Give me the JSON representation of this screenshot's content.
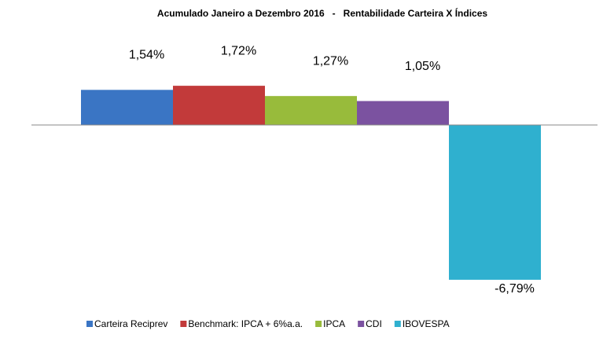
{
  "chart_data": {
    "type": "bar",
    "title": "Acumulado Janeiro a Dezembro 2016   -   Rentabilidade Carteira X Índices",
    "series": [
      {
        "name": "Carteira Reciprev",
        "color": "#3a75c4",
        "values": [
          1.54
        ],
        "value_labels": [
          "1,54%"
        ]
      },
      {
        "name": "Benchmark: IPCA + 6%a.a.",
        "color": "#c23a3a",
        "values": [
          1.72
        ],
        "value_labels": [
          "1,72%"
        ]
      },
      {
        "name": "IPCA",
        "color": "#98bb3b",
        "values": [
          1.27
        ],
        "value_labels": [
          "1,27%"
        ]
      },
      {
        "name": "CDI",
        "color": "#7b52a0",
        "values": [
          1.05
        ],
        "value_labels": [
          "1,05%"
        ]
      },
      {
        "name": "IBOVESPA",
        "color": "#2fb0cf",
        "values": [
          -6.79
        ],
        "value_labels": [
          "-6,79%"
        ]
      }
    ],
    "ylim": [
      -8,
      2
    ],
    "legend": "bottom"
  }
}
